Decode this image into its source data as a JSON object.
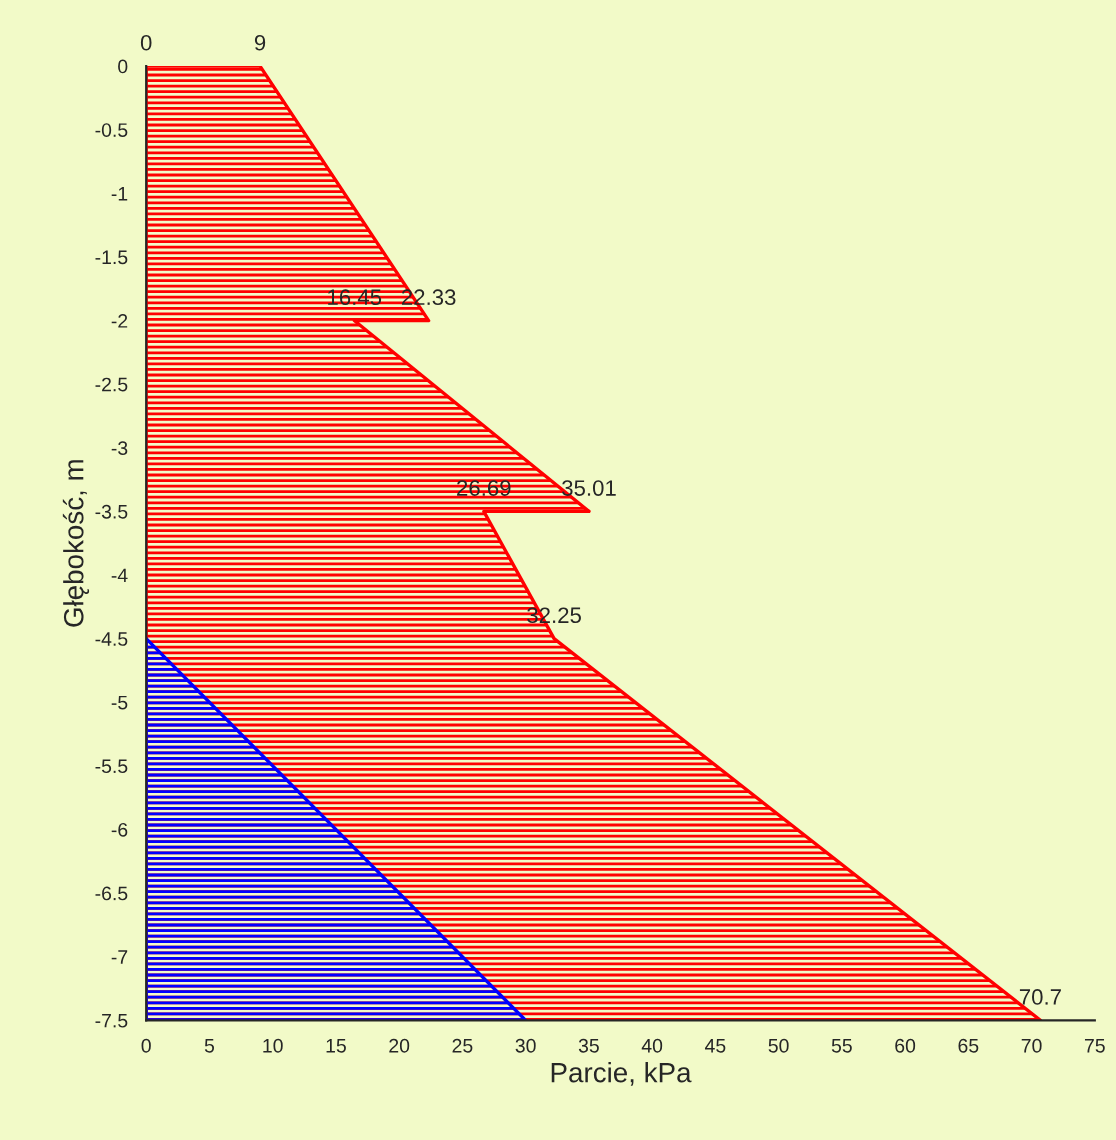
{
  "chart_data": {
    "type": "area",
    "xlabel": "Parcie, kPa",
    "ylabel": "Głębokość, m",
    "xlim": [
      0,
      75
    ],
    "xticks": [
      0,
      5,
      10,
      15,
      20,
      25,
      30,
      35,
      40,
      45,
      50,
      55,
      60,
      65,
      70,
      75
    ],
    "ylim": [
      -7.5,
      0
    ],
    "yticks": [
      {
        "value": 0,
        "label": "0"
      },
      {
        "value": -0.5,
        "label": "-0.5"
      },
      {
        "value": -1,
        "label": "-1"
      },
      {
        "value": -1.5,
        "label": "-1.5"
      },
      {
        "value": -2,
        "label": "-2"
      },
      {
        "value": -2.5,
        "label": "-2.5"
      },
      {
        "value": -3,
        "label": "-3"
      },
      {
        "value": -3.5,
        "label": "-3.5"
      },
      {
        "value": -4,
        "label": "-4"
      },
      {
        "value": -4.5,
        "label": "-4.5"
      },
      {
        "value": -5,
        "label": "-5"
      },
      {
        "value": -5.5,
        "label": "-5.5"
      },
      {
        "value": -6,
        "label": "-6"
      },
      {
        "value": -6.5,
        "label": "-6.5"
      },
      {
        "value": -7,
        "label": "-7"
      },
      {
        "value": -7.5,
        "label": "-7.5"
      }
    ],
    "series": [
      {
        "color": "#ff0000",
        "x": [
          0,
          9,
          22.33,
          16.45,
          35.01,
          26.69,
          32.25,
          70.7,
          0
        ],
        "values": [
          0,
          0,
          -2,
          -2,
          -3.5,
          -3.5,
          -4.5,
          -7.5,
          -7.5
        ]
      },
      {
        "color": "#0000ff",
        "x": [
          0,
          30,
          0
        ],
        "values": [
          -4.5,
          -7.5,
          -7.5
        ]
      }
    ],
    "annotations": [
      {
        "text": "0",
        "x": 0,
        "y": 0
      },
      {
        "text": "9",
        "x": 9,
        "y": 0
      },
      {
        "text": "16.45",
        "x": 16.45,
        "y": -2
      },
      {
        "text": "22.33",
        "x": 22.33,
        "y": -2
      },
      {
        "text": "26.69",
        "x": 26.69,
        "y": -3.5
      },
      {
        "text": "35.01",
        "x": 35.01,
        "y": -3.5
      },
      {
        "text": "32.25",
        "x": 32.25,
        "y": -4.5
      },
      {
        "text": "70.7",
        "x": 70.7,
        "y": -7.5
      }
    ]
  }
}
